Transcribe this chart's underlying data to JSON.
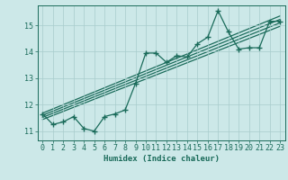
{
  "title": "",
  "xlabel": "Humidex (Indice chaleur)",
  "xlim": [
    -0.5,
    23.5
  ],
  "ylim": [
    10.65,
    15.75
  ],
  "xtick_labels": [
    "0",
    "1",
    "2",
    "3",
    "4",
    "5",
    "6",
    "7",
    "8",
    "9",
    "10",
    "11",
    "12",
    "13",
    "14",
    "15",
    "16",
    "17",
    "18",
    "19",
    "20",
    "21",
    "22",
    "23"
  ],
  "ytick_labels": [
    "11",
    "12",
    "13",
    "14",
    "15"
  ],
  "ytick_values": [
    11,
    12,
    13,
    14,
    15
  ],
  "background_color": "#cce8e8",
  "grid_color": "#a8cccc",
  "line_color": "#1a6b5a",
  "series1_x": [
    0,
    1,
    2,
    3,
    4,
    5,
    6,
    7,
    8,
    9,
    10,
    11,
    12,
    13,
    14,
    15,
    16,
    17,
    18,
    19,
    20,
    21,
    22,
    23
  ],
  "series1_y": [
    11.65,
    11.25,
    11.35,
    11.55,
    11.1,
    11.0,
    11.55,
    11.65,
    11.8,
    12.8,
    13.95,
    13.95,
    13.6,
    13.85,
    13.8,
    14.3,
    14.55,
    15.55,
    14.75,
    14.1,
    14.15,
    14.15,
    15.15,
    15.15
  ],
  "reg_lines": [
    {
      "x": [
        0,
        23
      ],
      "y": [
        11.68,
        15.35
      ]
    },
    {
      "x": [
        0,
        23
      ],
      "y": [
        11.6,
        15.22
      ]
    },
    {
      "x": [
        0,
        23
      ],
      "y": [
        11.52,
        15.09
      ]
    },
    {
      "x": [
        0,
        23
      ],
      "y": [
        11.44,
        14.96
      ]
    }
  ]
}
